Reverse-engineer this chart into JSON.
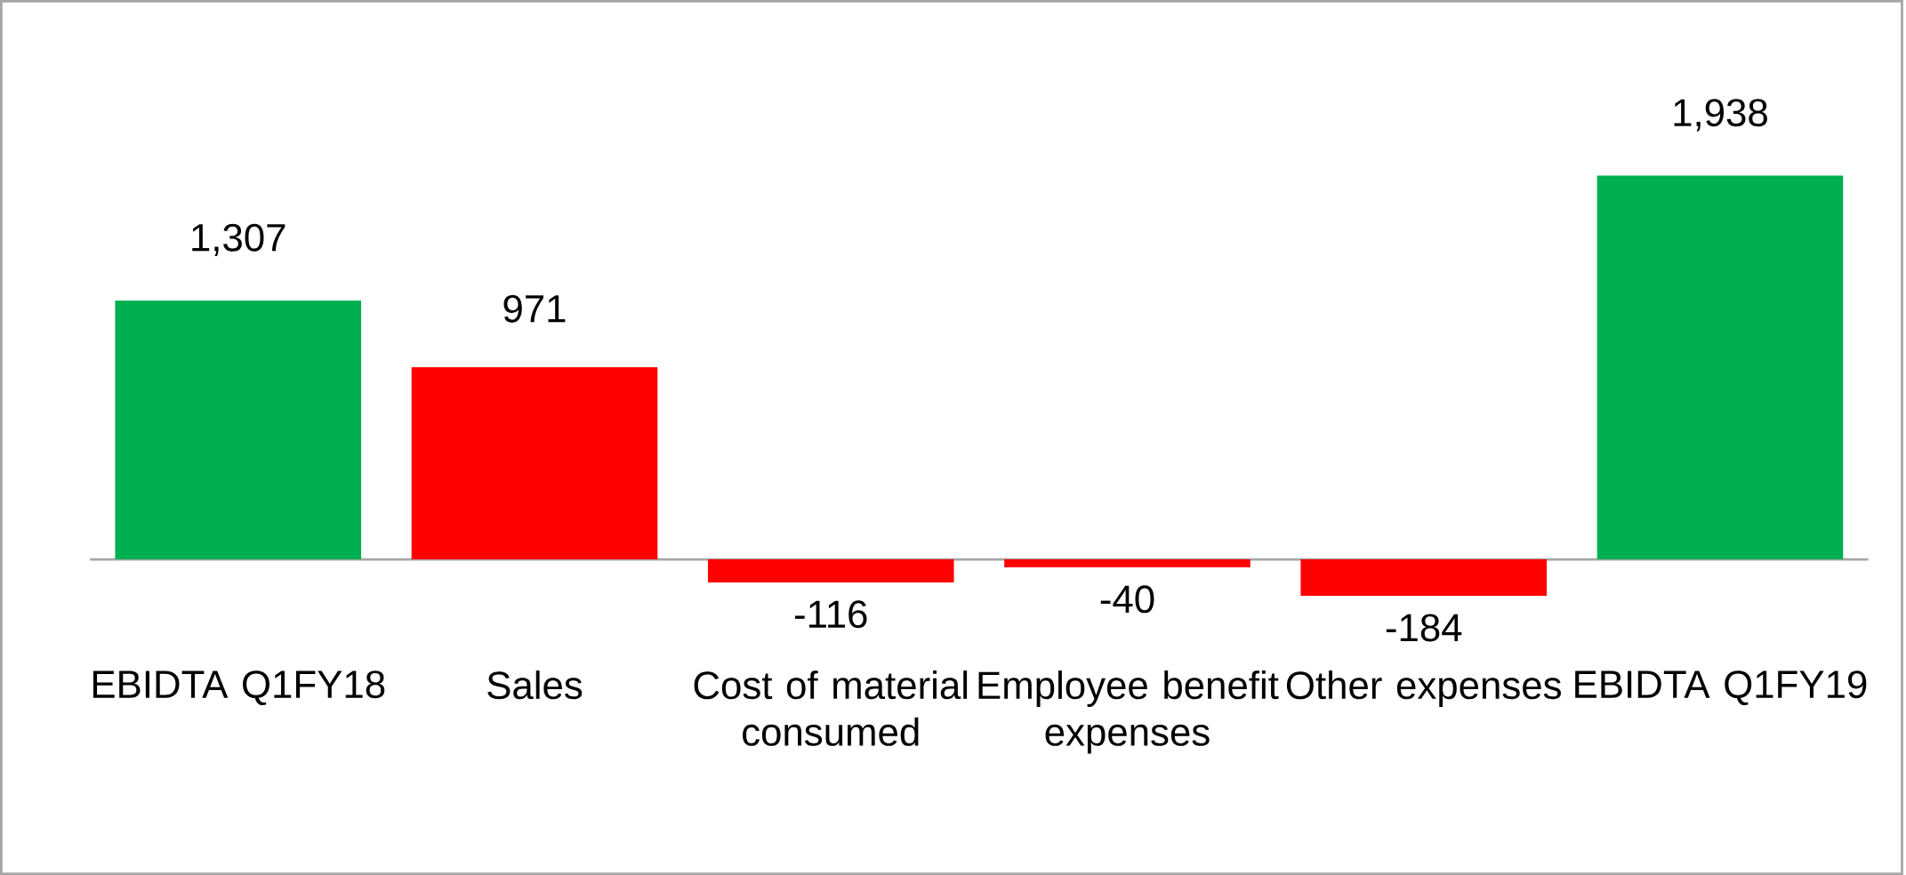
{
  "chart_data": {
    "type": "bar",
    "categories": [
      "EBIDTA Q1FY18",
      "Sales",
      "Cost of material consumed",
      "Employee benefit expenses",
      "Other expenses",
      "EBIDTA Q1FY19"
    ],
    "values": [
      1307,
      971,
      -116,
      -40,
      -184,
      1938
    ],
    "colors": [
      "#00b050",
      "#ff0000",
      "#ff0000",
      "#ff0000",
      "#ff0000",
      "#00b050"
    ],
    "value_labels": [
      "1,307",
      "971",
      "-116",
      "-40",
      "-184",
      "1,938"
    ]
  }
}
